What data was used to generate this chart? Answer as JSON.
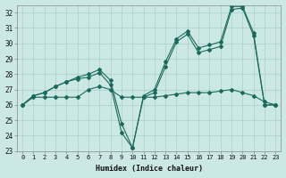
{
  "xlabel": "Humidex (Indice chaleur)",
  "bg_color": "#cce8e4",
  "line_color": "#1a6b5e",
  "grid_color": "#aacfc8",
  "xlim": [
    -0.5,
    23.5
  ],
  "ylim": [
    23,
    32.5
  ],
  "yticks": [
    23,
    24,
    25,
    26,
    27,
    28,
    29,
    30,
    31,
    32
  ],
  "xticks": [
    0,
    1,
    2,
    3,
    4,
    5,
    6,
    7,
    8,
    9,
    10,
    11,
    12,
    13,
    14,
    15,
    16,
    17,
    18,
    19,
    20,
    21,
    22,
    23
  ],
  "series": [
    [
      26.0,
      26.6,
      26.8,
      27.2,
      27.5,
      27.7,
      27.8,
      28.1,
      27.3,
      24.2,
      23.2,
      26.5,
      26.8,
      28.5,
      30.1,
      30.6,
      29.4,
      29.6,
      29.8,
      32.2,
      32.3,
      30.5,
      26.0,
      26.0
    ],
    [
      26.0,
      26.6,
      26.8,
      27.2,
      27.5,
      27.8,
      28.0,
      28.3,
      27.6,
      24.8,
      23.2,
      26.6,
      27.0,
      28.8,
      30.3,
      30.8,
      29.7,
      29.9,
      30.1,
      32.4,
      32.4,
      30.7,
      26.0,
      26.0
    ],
    [
      26.0,
      26.5,
      26.5,
      26.5,
      26.5,
      26.5,
      27.0,
      27.2,
      27.0,
      26.5,
      26.5,
      26.5,
      26.5,
      26.6,
      26.7,
      26.8,
      26.8,
      26.8,
      26.9,
      27.0,
      26.8,
      26.6,
      26.2,
      26.0
    ]
  ]
}
